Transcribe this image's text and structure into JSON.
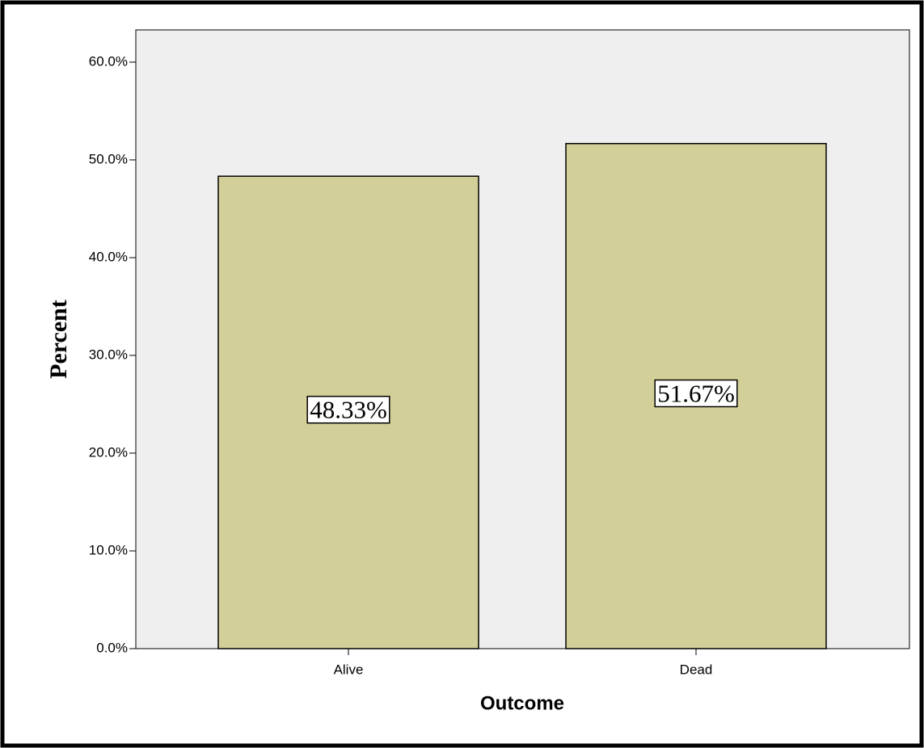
{
  "chart_data": {
    "type": "bar",
    "x_label": "Outcome",
    "y_label": "Percent",
    "categories": [
      "Alive",
      "Dead"
    ],
    "values": [
      48.33,
      51.67
    ],
    "value_labels": [
      "48.33%",
      "51.67%"
    ],
    "color": "#d3cf98",
    "background": "#efefef",
    "ylim": [
      0,
      63.3
    ],
    "yticks": [
      {
        "value": 0,
        "label": "0.0%"
      },
      {
        "value": 10,
        "label": "10.0%"
      },
      {
        "value": 20,
        "label": "20.0%"
      },
      {
        "value": 30,
        "label": "30.0%"
      },
      {
        "value": 40,
        "label": "40.0%"
      },
      {
        "value": 50,
        "label": "50.0%"
      },
      {
        "value": 60,
        "label": "60.0%"
      }
    ],
    "grid": false
  }
}
